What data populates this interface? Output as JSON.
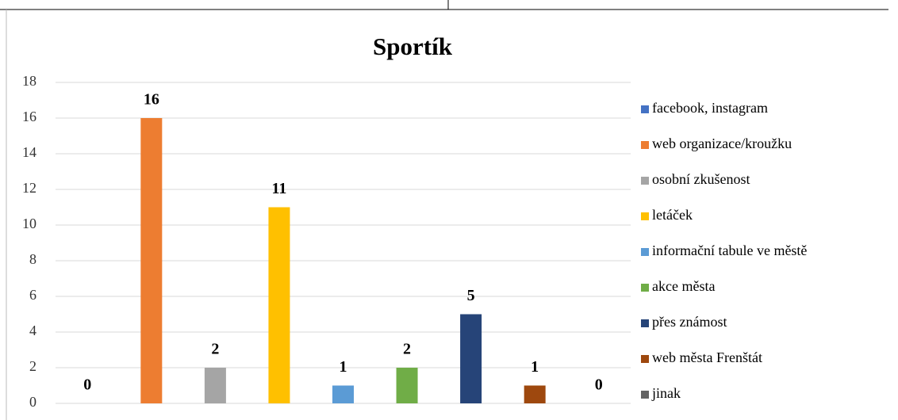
{
  "chart_data": {
    "type": "bar",
    "title": "Sportík",
    "categories": [
      "facebook, instagram",
      "web organizace/kroužku",
      "osobní zkušenost",
      "letáček",
      "informační tabule ve městě",
      "akce města",
      "přes známost",
      "web města Frenštát",
      "jinak"
    ],
    "values": [
      0,
      16,
      2,
      11,
      1,
      2,
      5,
      1,
      0
    ],
    "colors": [
      "#4472c4",
      "#ed7d31",
      "#a5a5a5",
      "#ffc000",
      "#5b9bd5",
      "#70ad47",
      "#264478",
      "#9e480e",
      "#636363"
    ],
    "ylim": [
      0,
      18
    ],
    "yticks": [
      0,
      2,
      4,
      6,
      8,
      10,
      12,
      14,
      16,
      18
    ],
    "grid": true,
    "legend": "right"
  }
}
